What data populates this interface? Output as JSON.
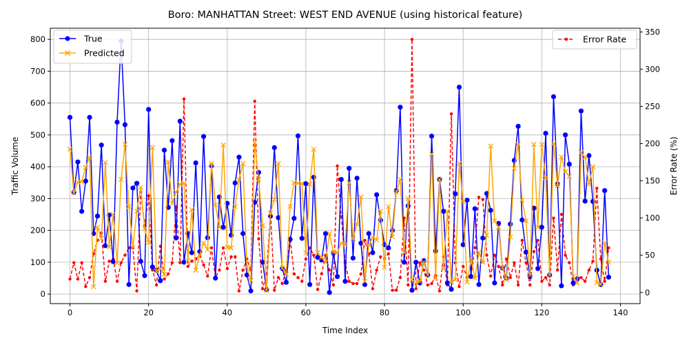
{
  "chart_data": {
    "type": "line",
    "title": "Boro: MANHATTAN Street: WEST END AVENUE (using historical feature)",
    "xlabel": "Time Index",
    "ylabel": "Traffic Volume",
    "y2label": "Error Rate (%)",
    "xlim": [
      -5,
      145
    ],
    "ylim": [
      -30,
      835
    ],
    "y2lim": [
      -15,
      355
    ],
    "xticks": [
      0,
      20,
      40,
      60,
      80,
      100,
      120,
      140
    ],
    "yticks": [
      0,
      100,
      200,
      300,
      400,
      500,
      600,
      700,
      800
    ],
    "y2ticks": [
      0,
      50,
      100,
      150,
      200,
      250,
      300,
      350
    ],
    "grid": true,
    "legend_left": "top-left",
    "legend_right": "top-right",
    "colors": {
      "true": "#0000ff",
      "predicted": "#ffa500",
      "error": "#ff0000"
    },
    "series": [
      {
        "name": "True",
        "axis": "left",
        "values": [
          555,
          320,
          415,
          260,
          355,
          555,
          190,
          245,
          468,
          152,
          248,
          102,
          540,
          795,
          532,
          30,
          333,
          348,
          103,
          58,
          580,
          85,
          75,
          42,
          452,
          272,
          482,
          176,
          543,
          100,
          190,
          130,
          412,
          133,
          495,
          177,
          403,
          50,
          305,
          210,
          285,
          185,
          349,
          430,
          190,
          60,
          10,
          288,
          382,
          100,
          14,
          245,
          460,
          240,
          80,
          37,
          172,
          238,
          497,
          175,
          347,
          30,
          367,
          115,
          107,
          190,
          5,
          128,
          55,
          360,
          40,
          395,
          113,
          364,
          160,
          30,
          190,
          130,
          312,
          232,
          155,
          145,
          200,
          325,
          587,
          100,
          277,
          12,
          100,
          35,
          105,
          60,
          496,
          135,
          360,
          260,
          35,
          15,
          315,
          650,
          155,
          295,
          55,
          268,
          30,
          176,
          316,
          263,
          35,
          222,
          82,
          50,
          220,
          420,
          527,
          233,
          132,
          55,
          270,
          80,
          210,
          505,
          60,
          620,
          346,
          26,
          500,
          408,
          35,
          47,
          575,
          292,
          435,
          291,
          75,
          30,
          325,
          53
        ]
      },
      {
        "name": "Predicted",
        "axis": "left",
        "values": [
          455,
          318,
          352,
          353,
          398,
          430,
          23,
          210,
          175,
          413,
          148,
          250,
          98,
          360,
          470,
          275,
          147,
          260,
          335,
          205,
          162,
          460,
          72,
          80,
          62,
          415,
          285,
          320,
          345,
          348,
          105,
          265,
          75,
          123,
          160,
          140,
          410,
          280,
          210,
          468,
          147,
          145,
          275,
          360,
          410,
          85,
          43,
          476,
          360,
          215,
          12,
          255,
          297,
          410,
          82,
          62,
          275,
          350,
          348,
          347,
          130,
          345,
          455,
          130,
          115,
          100,
          190,
          132,
          130,
          160,
          155,
          350,
          175,
          220,
          305,
          40,
          155,
          178,
          170,
          260,
          84,
          275,
          180,
          320,
          360,
          130,
          300,
          45,
          35,
          40,
          100,
          60,
          440,
          50,
          360,
          80,
          260,
          38,
          45,
          410,
          290,
          38,
          110,
          50,
          130,
          100,
          185,
          465,
          230,
          210,
          83,
          45,
          180,
          395,
          470,
          295,
          230,
          60,
          470,
          210,
          470,
          365,
          60,
          473,
          340,
          430,
          385,
          370,
          55,
          35,
          445,
          430,
          345,
          400,
          36,
          30,
          160,
          100
        ]
      },
      {
        "name": "Error Rate",
        "axis": "right",
        "values": [
          18,
          40,
          18,
          40,
          8,
          20,
          52,
          70,
          80,
          15,
          42,
          45,
          15,
          40,
          50,
          60,
          60,
          2,
          135,
          90,
          130,
          30,
          10,
          62,
          18,
          25,
          40,
          115,
          40,
          260,
          35,
          42,
          45,
          50,
          37,
          22,
          60,
          20,
          30,
          60,
          32,
          48,
          48,
          2,
          30,
          45,
          30,
          257,
          72,
          5,
          25,
          108,
          3,
          20,
          12,
          30,
          73,
          25,
          20,
          15,
          45,
          60,
          50,
          4,
          25,
          50,
          30,
          10,
          170,
          102,
          40,
          15,
          12,
          12,
          25,
          70,
          52,
          5,
          30,
          48,
          45,
          52,
          3,
          3,
          20,
          100,
          10,
          340,
          5,
          40,
          30,
          10,
          12,
          23,
          2,
          48,
          10,
          240,
          40,
          8,
          35,
          20,
          23,
          60,
          128,
          125,
          50,
          22,
          50,
          35,
          10,
          45,
          20,
          40,
          10,
          70,
          40,
          10,
          55,
          70,
          15,
          20,
          10,
          100,
          30,
          105,
          50,
          40,
          10,
          20,
          20,
          15,
          30,
          42,
          140,
          45,
          15,
          60
        ]
      }
    ]
  }
}
